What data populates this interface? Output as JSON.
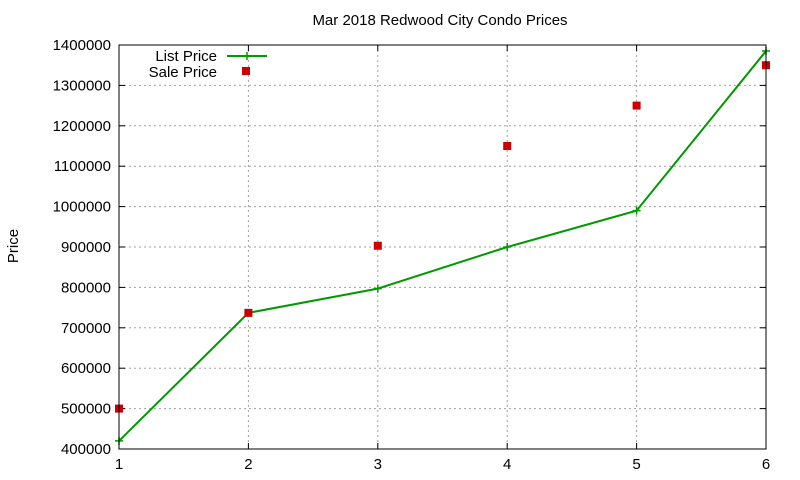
{
  "chart_data": {
    "type": "line",
    "title": "Mar 2018 Redwood City Condo Prices",
    "xlabel": "",
    "ylabel": "Price",
    "x": [
      1,
      2,
      3,
      4,
      5,
      6
    ],
    "xlim": [
      1,
      6
    ],
    "ylim": [
      400000,
      1400000
    ],
    "xticks": [
      1,
      2,
      3,
      4,
      5,
      6
    ],
    "yticks": [
      400000,
      500000,
      600000,
      700000,
      800000,
      900000,
      1000000,
      1100000,
      1200000,
      1300000,
      1400000
    ],
    "grid": true,
    "legend_position": "top-left",
    "series": [
      {
        "name": "List Price",
        "style": "line-with-plus-markers",
        "color": "#009900",
        "values": [
          420000,
          737000,
          797000,
          900000,
          990000,
          1385000
        ]
      },
      {
        "name": "Sale Price",
        "style": "square-markers",
        "color": "#cc0000",
        "values": [
          500000,
          737000,
          903000,
          1150000,
          1250000,
          1350000
        ]
      }
    ]
  }
}
